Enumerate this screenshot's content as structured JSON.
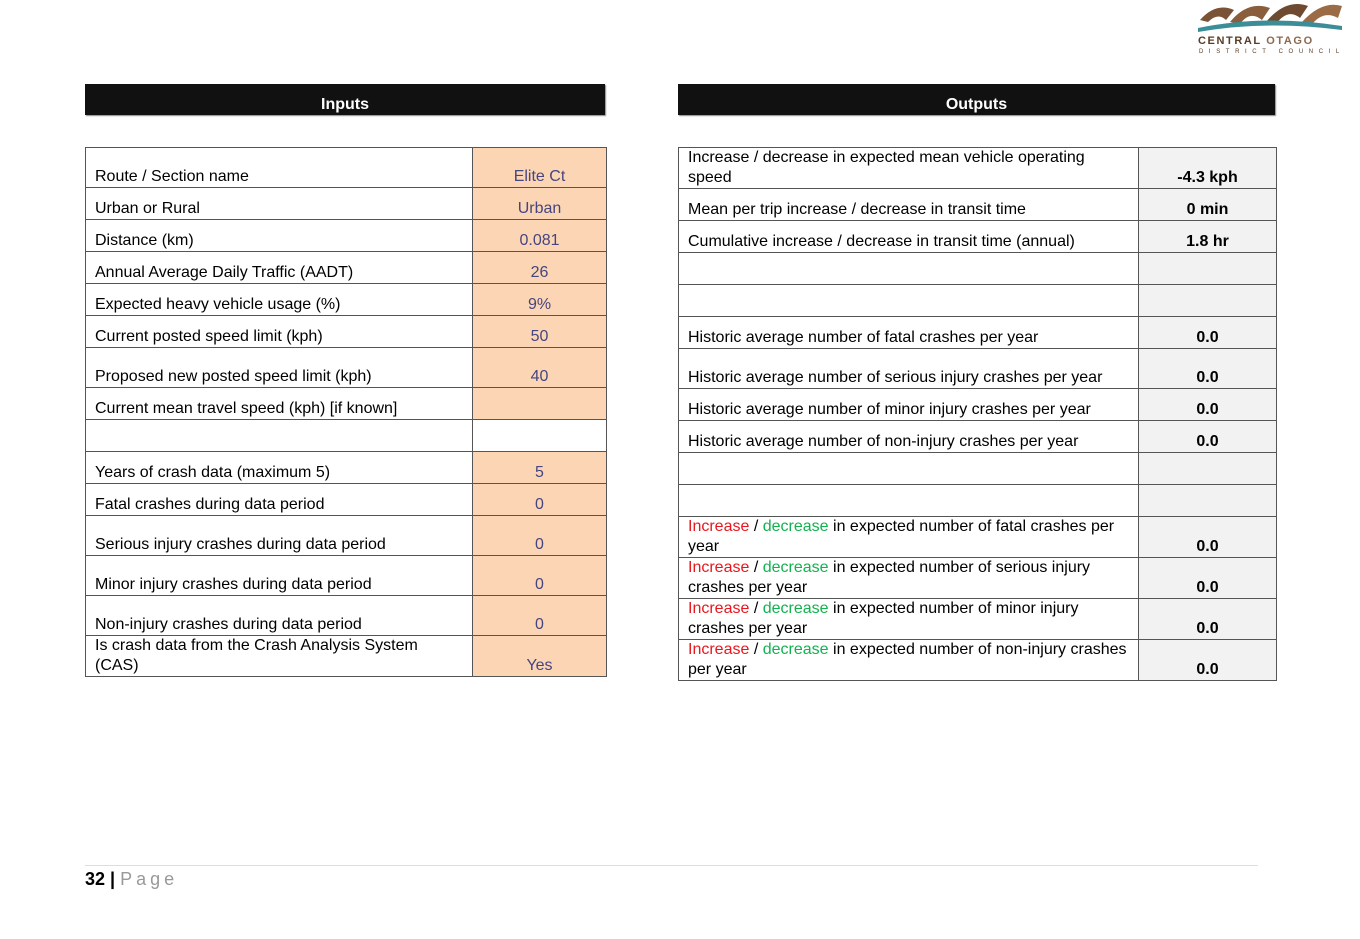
{
  "logo": {
    "line1a": "CENTRAL",
    "line1b": "OTAGO",
    "line2": "DISTRICT COUNCIL"
  },
  "inputs": {
    "title": "Inputs",
    "rows": [
      {
        "label": "Route / Section name",
        "value": "Elite Ct"
      },
      {
        "label": "Urban or Rural",
        "value": "Urban"
      },
      {
        "label": "Distance (km)",
        "value": "0.081"
      },
      {
        "label": "Annual Average Daily Traffic (AADT)",
        "value": "26"
      },
      {
        "label": "Expected heavy vehicle usage (%)",
        "value": "9%"
      },
      {
        "label": "Current posted speed limit (kph)",
        "value": "50"
      },
      {
        "label": "Proposed new posted speed limit (kph)",
        "value": "40"
      },
      {
        "label": "Current mean travel speed (kph) [if known]"
      },
      {
        "label": "Years of crash data (maximum 5)",
        "value": "5"
      },
      {
        "label": "Fatal crashes during data period",
        "value": "0"
      },
      {
        "label": "Serious injury crashes during data period",
        "value": "0"
      },
      {
        "label": "Minor injury crashes during data period",
        "value": "0"
      },
      {
        "label": "Non-injury crashes during data period",
        "value": "0"
      },
      {
        "label": "Is crash data from the Crash Analysis System (CAS)",
        "value": "Yes"
      }
    ]
  },
  "outputs": {
    "title": "Outputs",
    "rows": [
      {
        "label": "Increase / decrease in expected mean vehicle operating speed",
        "value": "-4.3 kph"
      },
      {
        "label": "Mean per trip increase / decrease in transit time",
        "value": "0 min"
      },
      {
        "label": "Cumulative increase / decrease in transit time (annual)",
        "value": "1.8 hr"
      },
      {
        "label": "Historic average number of fatal crashes per year",
        "value": "0.0"
      },
      {
        "label": "Historic average number of serious injury crashes per year",
        "value": "0.0"
      },
      {
        "label": "Historic average number of minor injury crashes per year",
        "value": "0.0"
      },
      {
        "label": "Historic average number of non-injury crashes per year",
        "value": "0.0"
      },
      {
        "label_parts": [
          "Increase",
          "/",
          "decrease",
          "in expected number of fatal crashes per year"
        ],
        "value": "0.0"
      },
      {
        "label_parts": [
          "Increase",
          "/",
          "decrease",
          "in expected number of serious injury crashes per year"
        ],
        "value": "0.0"
      },
      {
        "label_parts": [
          "Increase",
          "/",
          "decrease",
          "in expected number of minor injury crashes per year"
        ],
        "value": "0.0"
      },
      {
        "label_parts": [
          "Increase",
          "/",
          "decrease",
          "in expected number of non-injury crashes per year"
        ],
        "value": "0.0"
      }
    ]
  },
  "footer": {
    "page": "32",
    "sep": "|",
    "word": "Page"
  }
}
